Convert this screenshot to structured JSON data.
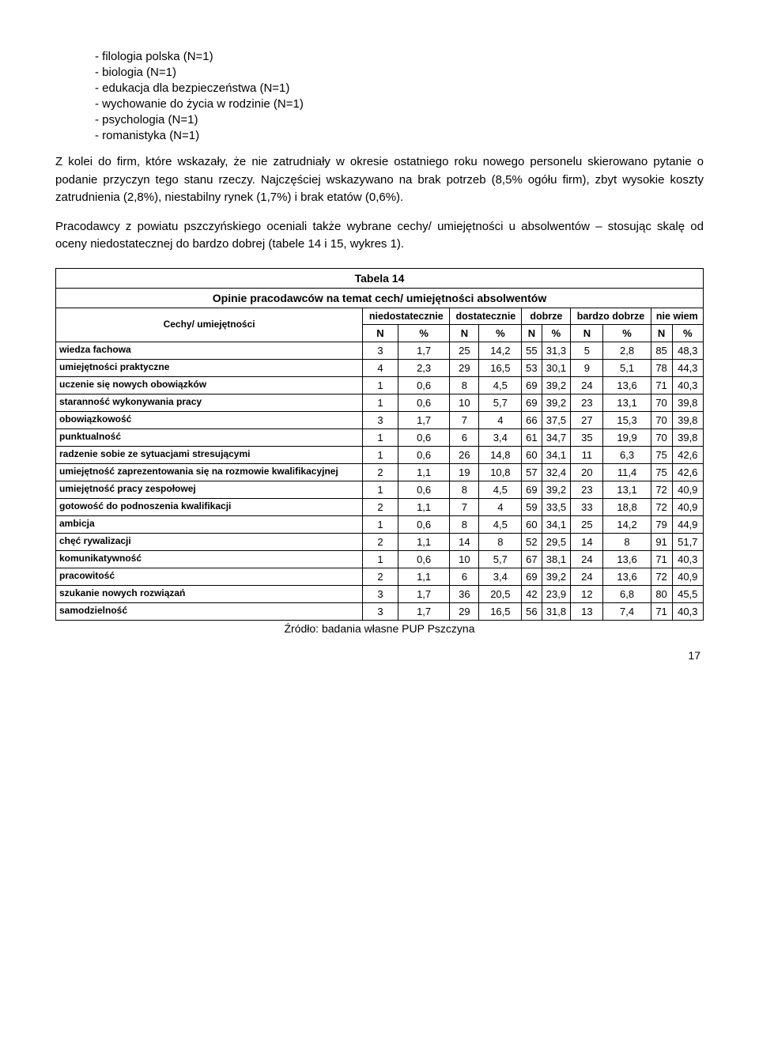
{
  "list": {
    "i0": "- filologia polska (N=1)",
    "i1": "- biologia (N=1)",
    "i2": "- edukacja dla bezpieczeństwa (N=1)",
    "i3": "- wychowanie do życia w rodzinie (N=1)",
    "i4": "- psychologia (N=1)",
    "i5": "- romanistyka (N=1)"
  },
  "p1": "Z kolei do firm, które wskazały, że nie zatrudniały w okresie ostatniego roku nowego personelu skierowano pytanie o podanie przyczyn tego stanu rzeczy. Najczęściej wskazywano na brak potrzeb (8,5% ogółu firm), zbyt wysokie koszty zatrudnienia (2,8%), niestabilny rynek (1,7%) i brak etatów (0,6%).",
  "p2": "Pracodawcy z powiatu pszczyńskiego oceniali także wybrane cechy/ umiejętności u absolwentów – stosując skalę od oceny niedostatecznej do bardzo dobrej (tabele 14 i 15, wykres 1).",
  "table": {
    "title": "Tabela 14",
    "subtitle": "Opinie pracodawców na temat cech/ umiejętności absolwentów",
    "rowHeader": "Cechy/ umiejętności",
    "headers": {
      "h0": "niedostatecznie",
      "h1": "dostatecznie",
      "h2": "dobrze",
      "h3": "bardzo dobrze",
      "h4": "nie wiem",
      "N": "N",
      "pct": "%"
    },
    "rows": [
      {
        "label": "wiedza fachowa",
        "v": [
          "3",
          "1,7",
          "25",
          "14,2",
          "55",
          "31,3",
          "5",
          "2,8",
          "85",
          "48,3"
        ]
      },
      {
        "label": "umiejętności praktyczne",
        "v": [
          "4",
          "2,3",
          "29",
          "16,5",
          "53",
          "30,1",
          "9",
          "5,1",
          "78",
          "44,3"
        ]
      },
      {
        "label": "uczenie się nowych obowiązków",
        "v": [
          "1",
          "0,6",
          "8",
          "4,5",
          "69",
          "39,2",
          "24",
          "13,6",
          "71",
          "40,3"
        ]
      },
      {
        "label": "staranność wykonywania pracy",
        "v": [
          "1",
          "0,6",
          "10",
          "5,7",
          "69",
          "39,2",
          "23",
          "13,1",
          "70",
          "39,8"
        ]
      },
      {
        "label": "obowiązkowość",
        "v": [
          "3",
          "1,7",
          "7",
          "4",
          "66",
          "37,5",
          "27",
          "15,3",
          "70",
          "39,8"
        ]
      },
      {
        "label": "punktualność",
        "v": [
          "1",
          "0,6",
          "6",
          "3,4",
          "61",
          "34,7",
          "35",
          "19,9",
          "70",
          "39,8"
        ]
      },
      {
        "label": "radzenie sobie ze sytuacjami stresującymi",
        "v": [
          "1",
          "0,6",
          "26",
          "14,8",
          "60",
          "34,1",
          "11",
          "6,3",
          "75",
          "42,6"
        ]
      },
      {
        "label": "umiejętność zaprezentowania się na rozmowie kwalifikacyjnej",
        "v": [
          "2",
          "1,1",
          "19",
          "10,8",
          "57",
          "32,4",
          "20",
          "11,4",
          "75",
          "42,6"
        ]
      },
      {
        "label": "umiejętność pracy zespołowej",
        "v": [
          "1",
          "0,6",
          "8",
          "4,5",
          "69",
          "39,2",
          "23",
          "13,1",
          "72",
          "40,9"
        ]
      },
      {
        "label": "gotowość do podnoszenia kwalifikacji",
        "v": [
          "2",
          "1,1",
          "7",
          "4",
          "59",
          "33,5",
          "33",
          "18,8",
          "72",
          "40,9"
        ]
      },
      {
        "label": "ambicja",
        "v": [
          "1",
          "0,6",
          "8",
          "4,5",
          "60",
          "34,1",
          "25",
          "14,2",
          "79",
          "44,9"
        ]
      },
      {
        "label": "chęć rywalizacji",
        "v": [
          "2",
          "1,1",
          "14",
          "8",
          "52",
          "29,5",
          "14",
          "8",
          "91",
          "51,7"
        ]
      },
      {
        "label": "komunikatywność",
        "v": [
          "1",
          "0,6",
          "10",
          "5,7",
          "67",
          "38,1",
          "24",
          "13,6",
          "71",
          "40,3"
        ]
      },
      {
        "label": "pracowitość",
        "v": [
          "2",
          "1,1",
          "6",
          "3,4",
          "69",
          "39,2",
          "24",
          "13,6",
          "72",
          "40,9"
        ]
      },
      {
        "label": "szukanie nowych rozwiązań",
        "v": [
          "3",
          "1,7",
          "36",
          "20,5",
          "42",
          "23,9",
          "12",
          "6,8",
          "80",
          "45,5"
        ]
      },
      {
        "label": "samodzielność",
        "v": [
          "3",
          "1,7",
          "29",
          "16,5",
          "56",
          "31,8",
          "13",
          "7,4",
          "71",
          "40,3"
        ]
      }
    ]
  },
  "source": "Źródło: badania własne PUP Pszczyna",
  "pageNumber": "17"
}
